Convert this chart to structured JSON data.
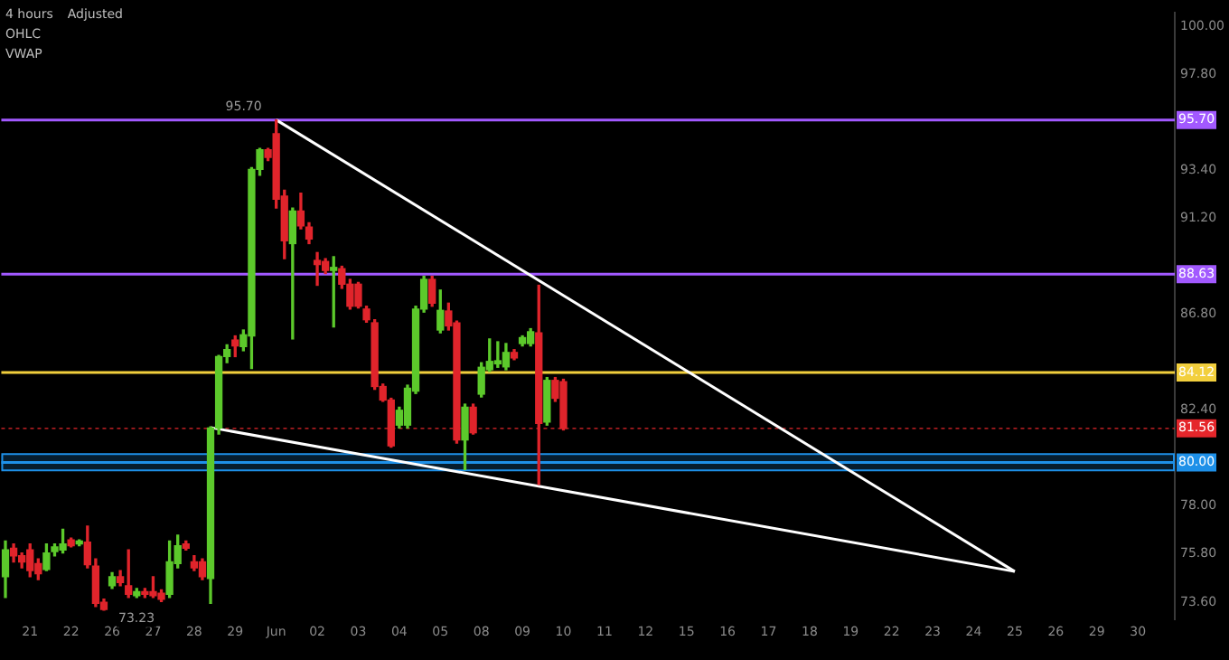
{
  "chart_data": {
    "type": "candlestick",
    "title": "4 hours",
    "subtitle": "Adjusted",
    "categories": [
      null,
      null,
      null,
      "21",
      null,
      null,
      null,
      null,
      "22",
      null,
      null,
      null,
      null,
      "26",
      null,
      null,
      null,
      null,
      "27",
      null,
      null,
      null,
      null,
      "28",
      null,
      null,
      null,
      null,
      "29",
      null,
      null,
      null,
      null,
      "Jun",
      null,
      null,
      null,
      null,
      "02",
      null,
      null,
      null,
      null,
      "03",
      null,
      null,
      null,
      null,
      "04",
      null,
      null,
      null,
      null,
      "05",
      null,
      null,
      null,
      null,
      "08",
      null,
      null,
      null,
      null,
      "09",
      null,
      null,
      null,
      null,
      "10",
      null,
      null,
      null,
      null,
      "11",
      null,
      null,
      null,
      null,
      "12",
      null,
      null,
      null,
      null,
      "15",
      null,
      null,
      null,
      null,
      "16",
      null,
      null,
      null,
      null,
      "17",
      null,
      null,
      null,
      null,
      "18",
      null,
      null,
      null,
      null,
      "19",
      null,
      null,
      null,
      null,
      "22",
      null,
      null,
      null,
      null,
      "23",
      null,
      null,
      null,
      null,
      "24",
      null,
      null,
      null,
      null,
      "25",
      null,
      null,
      null,
      null,
      "26",
      null,
      null,
      null,
      null,
      "29",
      null,
      null,
      null,
      null,
      "30",
      null,
      null,
      null,
      null
    ],
    "ohlc": [
      [
        74.76,
        76.4,
        73.81,
        75.99
      ],
      [
        76.07,
        76.26,
        75.44,
        75.72
      ],
      [
        75.72,
        75.85,
        75.17,
        75.44
      ],
      [
        75.99,
        76.26,
        74.76,
        75.04
      ],
      [
        75.36,
        75.58,
        74.63,
        74.9
      ],
      [
        75.09,
        76.26,
        75.04,
        75.85
      ],
      [
        75.91,
        76.26,
        75.72,
        76.13
      ],
      [
        75.99,
        76.94,
        75.85,
        76.26
      ],
      [
        76.45,
        76.53,
        76.13,
        76.18
      ],
      [
        76.26,
        76.45,
        76.18,
        76.4
      ],
      [
        76.34,
        77.08,
        75.17,
        75.31
      ],
      [
        75.25,
        75.58,
        73.4,
        73.54
      ],
      [
        73.59,
        73.73,
        73.23,
        73.26
      ],
      [
        74.35,
        74.95,
        74.22,
        74.76
      ],
      [
        74.76,
        75.04,
        74.35,
        74.49
      ],
      [
        74.35,
        75.99,
        73.81,
        73.95
      ],
      [
        73.89,
        74.22,
        73.81,
        74.08
      ],
      [
        74.08,
        74.22,
        73.81,
        73.95
      ],
      [
        74.08,
        74.76,
        73.81,
        73.89
      ],
      [
        74.0,
        74.16,
        73.62,
        73.73
      ],
      [
        73.95,
        76.4,
        73.81,
        75.44
      ],
      [
        75.36,
        76.67,
        75.17,
        76.18
      ],
      [
        76.26,
        76.4,
        75.99,
        76.07
      ],
      [
        75.44,
        75.72,
        75.04,
        75.17
      ],
      [
        75.44,
        75.58,
        74.63,
        74.76
      ],
      [
        74.68,
        81.63,
        73.54,
        81.58
      ],
      [
        81.58,
        84.9,
        81.3,
        84.85
      ],
      [
        84.85,
        85.39,
        84.57,
        85.17
      ],
      [
        85.61,
        85.8,
        84.85,
        85.34
      ],
      [
        85.31,
        86.07,
        85.12,
        85.85
      ],
      [
        85.8,
        93.51,
        84.3,
        93.43
      ],
      [
        93.43,
        94.39,
        93.16,
        94.33
      ],
      [
        94.33,
        94.39,
        93.84,
        93.98
      ],
      [
        95.07,
        95.7,
        91.66,
        92.07
      ],
      [
        92.21,
        92.48,
        89.34,
        90.16
      ],
      [
        90.03,
        91.66,
        85.66,
        91.52
      ],
      [
        91.52,
        92.34,
        90.71,
        90.84
      ],
      [
        90.79,
        90.98,
        90.03,
        90.24
      ],
      [
        89.26,
        89.62,
        88.12,
        89.07
      ],
      [
        89.21,
        89.34,
        88.66,
        88.8
      ],
      [
        88.8,
        89.43,
        86.21,
        88.94
      ],
      [
        88.88,
        88.99,
        87.98,
        88.17
      ],
      [
        88.17,
        88.39,
        87.03,
        87.16
      ],
      [
        88.17,
        88.25,
        87.08,
        87.16
      ],
      [
        87.03,
        87.16,
        86.43,
        86.54
      ],
      [
        86.4,
        86.54,
        83.35,
        83.48
      ],
      [
        83.48,
        83.59,
        82.8,
        82.86
      ],
      [
        82.86,
        82.94,
        80.7,
        80.76
      ],
      [
        81.71,
        82.53,
        81.58,
        82.39
      ],
      [
        81.71,
        83.54,
        81.58,
        83.4
      ],
      [
        83.27,
        87.16,
        83.16,
        87.03
      ],
      [
        87.03,
        88.53,
        86.89,
        88.39
      ],
      [
        88.39,
        88.53,
        87.16,
        87.3
      ],
      [
        86.07,
        87.9,
        85.94,
        86.97
      ],
      [
        86.94,
        87.3,
        86.07,
        86.26
      ],
      [
        86.4,
        86.48,
        80.89,
        81.03
      ],
      [
        81.03,
        82.67,
        79.67,
        82.53
      ],
      [
        82.53,
        82.67,
        81.3,
        81.36
      ],
      [
        83.13,
        84.57,
        83.0,
        84.36
      ],
      [
        84.25,
        85.66,
        84.17,
        84.63
      ],
      [
        84.52,
        85.53,
        84.36,
        84.66
      ],
      [
        84.38,
        85.45,
        84.25,
        85.04
      ],
      [
        85.04,
        85.17,
        84.71,
        84.79
      ],
      [
        85.45,
        85.8,
        85.34,
        85.72
      ],
      [
        85.45,
        86.13,
        85.34,
        85.99
      ],
      [
        85.94,
        88.12,
        78.99,
        81.79
      ],
      [
        81.85,
        83.89,
        81.71,
        83.76
      ],
      [
        83.76,
        83.89,
        82.8,
        82.94
      ],
      [
        83.7,
        83.81,
        81.49,
        81.56
      ],
      null,
      null,
      null,
      null,
      null,
      null,
      null,
      null,
      null,
      null,
      null,
      null,
      null,
      null,
      null,
      null,
      null,
      null,
      null,
      null,
      null,
      null,
      null,
      null,
      null,
      null,
      null,
      null,
      null,
      null,
      null,
      null,
      null,
      null,
      null,
      null,
      null,
      null,
      null,
      null,
      null,
      null,
      null,
      null,
      null,
      null,
      null,
      null,
      null,
      null,
      null,
      null,
      null,
      null,
      null,
      null,
      null,
      null,
      null,
      null,
      null,
      null,
      null,
      null,
      null,
      null,
      null,
      null,
      null,
      null,
      null,
      null,
      null,
      null
    ],
    "series": [
      {
        "type": "line",
        "color": "#ffffff",
        "values": [
          null,
          null,
          null,
          null,
          null,
          null,
          null,
          null,
          null,
          null,
          null,
          null,
          null,
          null,
          null,
          null,
          null,
          null,
          null,
          null,
          null,
          null,
          null,
          null,
          null,
          null,
          null,
          null,
          null,
          null,
          null,
          null,
          null,
          95.7,
          null,
          null,
          null,
          null,
          null,
          null,
          null,
          null,
          null,
          null,
          null,
          null,
          null,
          null,
          null,
          null,
          null,
          null,
          null,
          null,
          null,
          null,
          null,
          null,
          null,
          null,
          null,
          null,
          null,
          null,
          null,
          null,
          null,
          null,
          null,
          null,
          null,
          null,
          null,
          null,
          null,
          null,
          null,
          null,
          null,
          null,
          null,
          null,
          null,
          null,
          null,
          null,
          null,
          null,
          null,
          null,
          null,
          null,
          null,
          null,
          null,
          null,
          null,
          null,
          null,
          null,
          null,
          null,
          null,
          null,
          null,
          null,
          null,
          null,
          null,
          null,
          null,
          null,
          null,
          null,
          null,
          null,
          null,
          null,
          null,
          null,
          null,
          null,
          null,
          75.0,
          null,
          null,
          null,
          null,
          null,
          null,
          null,
          null,
          null,
          null,
          null,
          null,
          null,
          null,
          null,
          null,
          null,
          null,
          null
        ]
      },
      {
        "type": "line",
        "color": "#ffffff",
        "values": [
          null,
          null,
          null,
          null,
          null,
          null,
          null,
          null,
          null,
          null,
          null,
          null,
          null,
          null,
          null,
          null,
          null,
          null,
          null,
          null,
          null,
          null,
          null,
          null,
          null,
          81.6,
          null,
          null,
          null,
          null,
          null,
          null,
          null,
          null,
          null,
          null,
          null,
          null,
          null,
          null,
          null,
          null,
          null,
          null,
          null,
          null,
          null,
          null,
          null,
          null,
          null,
          null,
          null,
          null,
          null,
          null,
          null,
          null,
          null,
          null,
          null,
          null,
          null,
          null,
          null,
          null,
          null,
          null,
          null,
          null,
          null,
          null,
          null,
          null,
          null,
          null,
          null,
          null,
          null,
          null,
          null,
          null,
          null,
          null,
          null,
          null,
          null,
          null,
          null,
          null,
          null,
          null,
          null,
          null,
          null,
          null,
          null,
          null,
          null,
          null,
          null,
          null,
          null,
          null,
          null,
          null,
          null,
          null,
          null,
          null,
          null,
          null,
          null,
          null,
          null,
          null,
          null,
          null,
          null,
          null,
          null,
          null,
          null,
          75.0,
          null,
          null,
          null,
          null,
          null,
          null,
          null,
          null,
          null,
          null,
          null,
          null,
          null,
          null,
          null,
          null,
          null,
          null,
          null
        ]
      }
    ],
    "ref_lines": [
      {
        "axis": "y",
        "value": 95.7,
        "label": "95.70",
        "color": "#a259ff"
      },
      {
        "axis": "y",
        "value": 88.63,
        "label": "88.63",
        "color": "#a259ff"
      },
      {
        "axis": "y",
        "value": 84.12,
        "label": "84.12",
        "color": "#f2cf3d"
      },
      {
        "axis": "y",
        "value": 81.56,
        "label": "81.56",
        "color": "#e5262b",
        "line_style": "dotted"
      },
      {
        "axis": "y",
        "value": 80.0,
        "label": "80.00",
        "color": "#1e90e8"
      }
    ],
    "bands": [
      {
        "axis": "y",
        "from": 79.64,
        "to": 80.38,
        "color": "#1e90e8"
      }
    ],
    "annotations": [
      "OHLC",
      "VWAP",
      {
        "text": "95.70",
        "y": 95.7
      },
      "73.23"
    ],
    "ylim": [
      72.8,
      100.6
    ],
    "yticks": [
      {
        "value": 73.6,
        "label": "73.60"
      },
      {
        "value": 75.8,
        "label": "75.80"
      },
      {
        "value": 78,
        "label": "78.00"
      },
      {
        "value": 82.4,
        "label": "82.40"
      },
      {
        "value": 86.8,
        "label": "86.80"
      },
      {
        "value": 91.2,
        "label": "91.20"
      },
      {
        "value": 93.4,
        "label": "93.40"
      },
      {
        "value": 97.8,
        "label": "97.80"
      },
      {
        "value": 100,
        "label": "100.00"
      }
    ],
    "grid": false,
    "legend": false
  }
}
